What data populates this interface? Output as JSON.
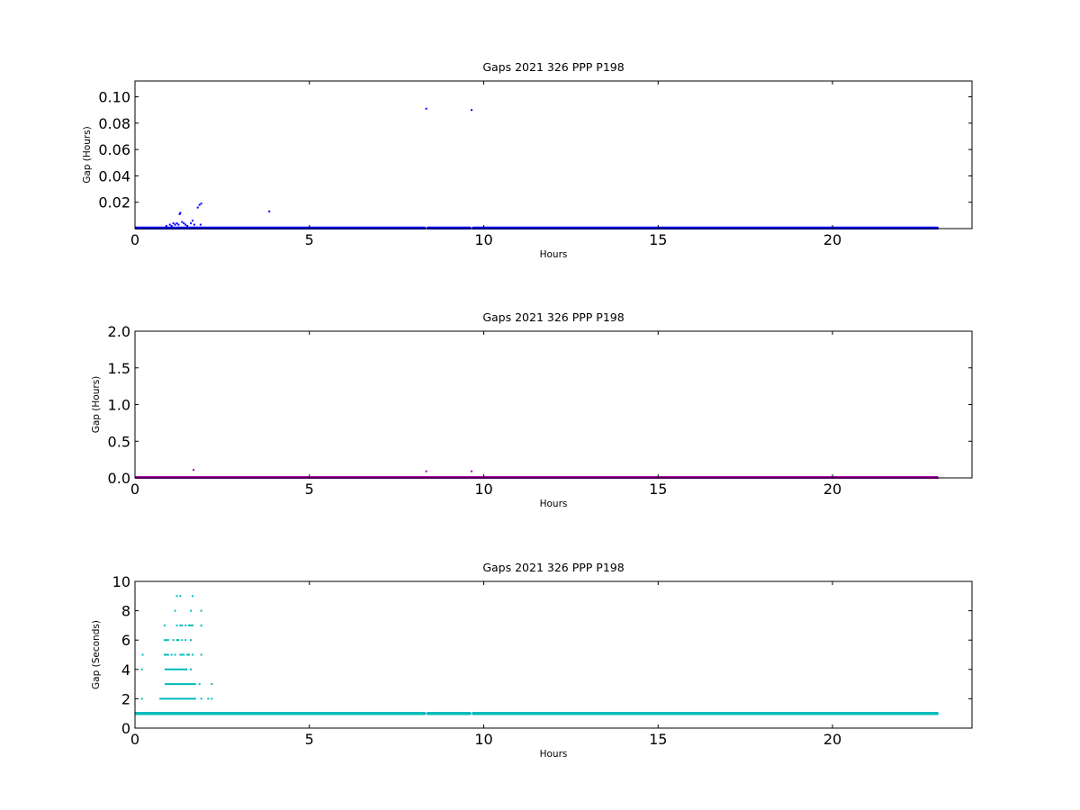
{
  "chart_data": [
    {
      "type": "scatter",
      "title": "Gaps 2021 326 PPP  P198",
      "xlabel": "Hours",
      "ylabel": "Gap (Hours)",
      "xlim": [
        0,
        24
      ],
      "ylim": [
        0,
        0.112
      ],
      "xticks": [
        0,
        5,
        10,
        15,
        20
      ],
      "yticks": [
        0.02,
        0.04,
        0.06,
        0.08,
        0.1
      ],
      "ytick_labels": [
        "0.02",
        "0.04",
        "0.06",
        "0.08",
        "0.10"
      ],
      "grid": false,
      "color": "#0000ff",
      "baseline_segments": [
        {
          "x_start": 0.0,
          "x_end": 8.3,
          "y": 0.0003
        },
        {
          "x_start": 8.4,
          "x_end": 9.6,
          "y": 0.0003
        },
        {
          "x_start": 9.7,
          "x_end": 23.0,
          "y": 0.0003
        }
      ],
      "points": [
        {
          "x": 0.9,
          "y": 0.002
        },
        {
          "x": 1.0,
          "y": 0.003
        },
        {
          "x": 1.05,
          "y": 0.002
        },
        {
          "x": 1.1,
          "y": 0.004
        },
        {
          "x": 1.15,
          "y": 0.003
        },
        {
          "x": 1.2,
          "y": 0.004
        },
        {
          "x": 1.25,
          "y": 0.003
        },
        {
          "x": 1.28,
          "y": 0.011
        },
        {
          "x": 1.3,
          "y": 0.012
        },
        {
          "x": 1.35,
          "y": 0.005
        },
        {
          "x": 1.4,
          "y": 0.004
        },
        {
          "x": 1.45,
          "y": 0.003
        },
        {
          "x": 1.5,
          "y": 0.002
        },
        {
          "x": 1.6,
          "y": 0.004
        },
        {
          "x": 1.65,
          "y": 0.006
        },
        {
          "x": 1.7,
          "y": 0.003
        },
        {
          "x": 1.8,
          "y": 0.016
        },
        {
          "x": 1.85,
          "y": 0.018
        },
        {
          "x": 1.9,
          "y": 0.019
        },
        {
          "x": 1.88,
          "y": 0.003
        },
        {
          "x": 3.85,
          "y": 0.013
        },
        {
          "x": 8.35,
          "y": 0.091
        },
        {
          "x": 9.65,
          "y": 0.09
        }
      ]
    },
    {
      "type": "scatter",
      "title": "Gaps 2021 326 PPP  P198",
      "xlabel": "Hours",
      "ylabel": "Gap (Hours)",
      "xlim": [
        0,
        24
      ],
      "ylim": [
        0,
        2.0
      ],
      "xticks": [
        0,
        5,
        10,
        15,
        20
      ],
      "yticks": [
        0.0,
        0.5,
        1.0,
        1.5,
        2.0
      ],
      "ytick_labels": [
        "0.0",
        "0.5",
        "1.0",
        "1.5",
        "2.0"
      ],
      "grid": false,
      "color": "#aa00aa",
      "baseline_segments": [
        {
          "x_start": 0.0,
          "x_end": 23.0,
          "y": 0.003
        }
      ],
      "points": [
        {
          "x": 1.68,
          "y": 0.11
        },
        {
          "x": 8.35,
          "y": 0.09
        },
        {
          "x": 9.65,
          "y": 0.09
        }
      ]
    },
    {
      "type": "scatter",
      "title": "Gaps 2021 326 PPP  P198",
      "xlabel": "Hours",
      "ylabel": "Gap (Seconds)",
      "xlim": [
        0,
        24
      ],
      "ylim": [
        0,
        10
      ],
      "xticks": [
        0,
        5,
        10,
        15,
        20
      ],
      "yticks": [
        0,
        2,
        4,
        6,
        8,
        10
      ],
      "ytick_labels": [
        "0",
        "2",
        "4",
        "6",
        "8",
        "10"
      ],
      "grid": false,
      "color": "#00bbbb",
      "baseline_segments": [
        {
          "x_start": 0.0,
          "x_end": 8.3,
          "y": 1
        },
        {
          "x_start": 8.4,
          "x_end": 9.6,
          "y": 1
        },
        {
          "x_start": 9.7,
          "x_end": 23.0,
          "y": 1
        }
      ],
      "level_segments": [
        {
          "x_start": 0.7,
          "x_end": 1.75,
          "y": 2
        },
        {
          "x_start": 0.85,
          "x_end": 1.75,
          "y": 3
        },
        {
          "x_start": 0.85,
          "x_end": 1.5,
          "y": 4
        }
      ],
      "points": [
        {
          "x": 0.2,
          "y": 2
        },
        {
          "x": 1.9,
          "y": 2
        },
        {
          "x": 2.1,
          "y": 2
        },
        {
          "x": 2.2,
          "y": 2
        },
        {
          "x": 1.85,
          "y": 3
        },
        {
          "x": 2.2,
          "y": 3
        },
        {
          "x": 0.2,
          "y": 4
        },
        {
          "x": 1.6,
          "y": 4
        },
        {
          "x": 0.22,
          "y": 5
        },
        {
          "x": 0.85,
          "y": 5
        },
        {
          "x": 0.9,
          "y": 5
        },
        {
          "x": 0.95,
          "y": 5
        },
        {
          "x": 1.05,
          "y": 5
        },
        {
          "x": 1.15,
          "y": 5
        },
        {
          "x": 1.3,
          "y": 5
        },
        {
          "x": 1.35,
          "y": 5
        },
        {
          "x": 1.4,
          "y": 5
        },
        {
          "x": 1.5,
          "y": 5
        },
        {
          "x": 1.55,
          "y": 5
        },
        {
          "x": 1.65,
          "y": 5
        },
        {
          "x": 1.9,
          "y": 5
        },
        {
          "x": 0.85,
          "y": 6
        },
        {
          "x": 0.9,
          "y": 6
        },
        {
          "x": 0.95,
          "y": 6
        },
        {
          "x": 1.1,
          "y": 6
        },
        {
          "x": 1.2,
          "y": 6
        },
        {
          "x": 1.25,
          "y": 6
        },
        {
          "x": 1.35,
          "y": 6
        },
        {
          "x": 1.45,
          "y": 6
        },
        {
          "x": 1.6,
          "y": 6
        },
        {
          "x": 0.85,
          "y": 7
        },
        {
          "x": 1.2,
          "y": 7
        },
        {
          "x": 1.3,
          "y": 7
        },
        {
          "x": 1.35,
          "y": 7
        },
        {
          "x": 1.45,
          "y": 7
        },
        {
          "x": 1.55,
          "y": 7
        },
        {
          "x": 1.6,
          "y": 7
        },
        {
          "x": 1.65,
          "y": 7
        },
        {
          "x": 1.9,
          "y": 7
        },
        {
          "x": 1.15,
          "y": 8
        },
        {
          "x": 1.6,
          "y": 8
        },
        {
          "x": 1.9,
          "y": 8
        },
        {
          "x": 1.2,
          "y": 9
        },
        {
          "x": 1.3,
          "y": 9
        },
        {
          "x": 1.65,
          "y": 9
        }
      ]
    }
  ]
}
